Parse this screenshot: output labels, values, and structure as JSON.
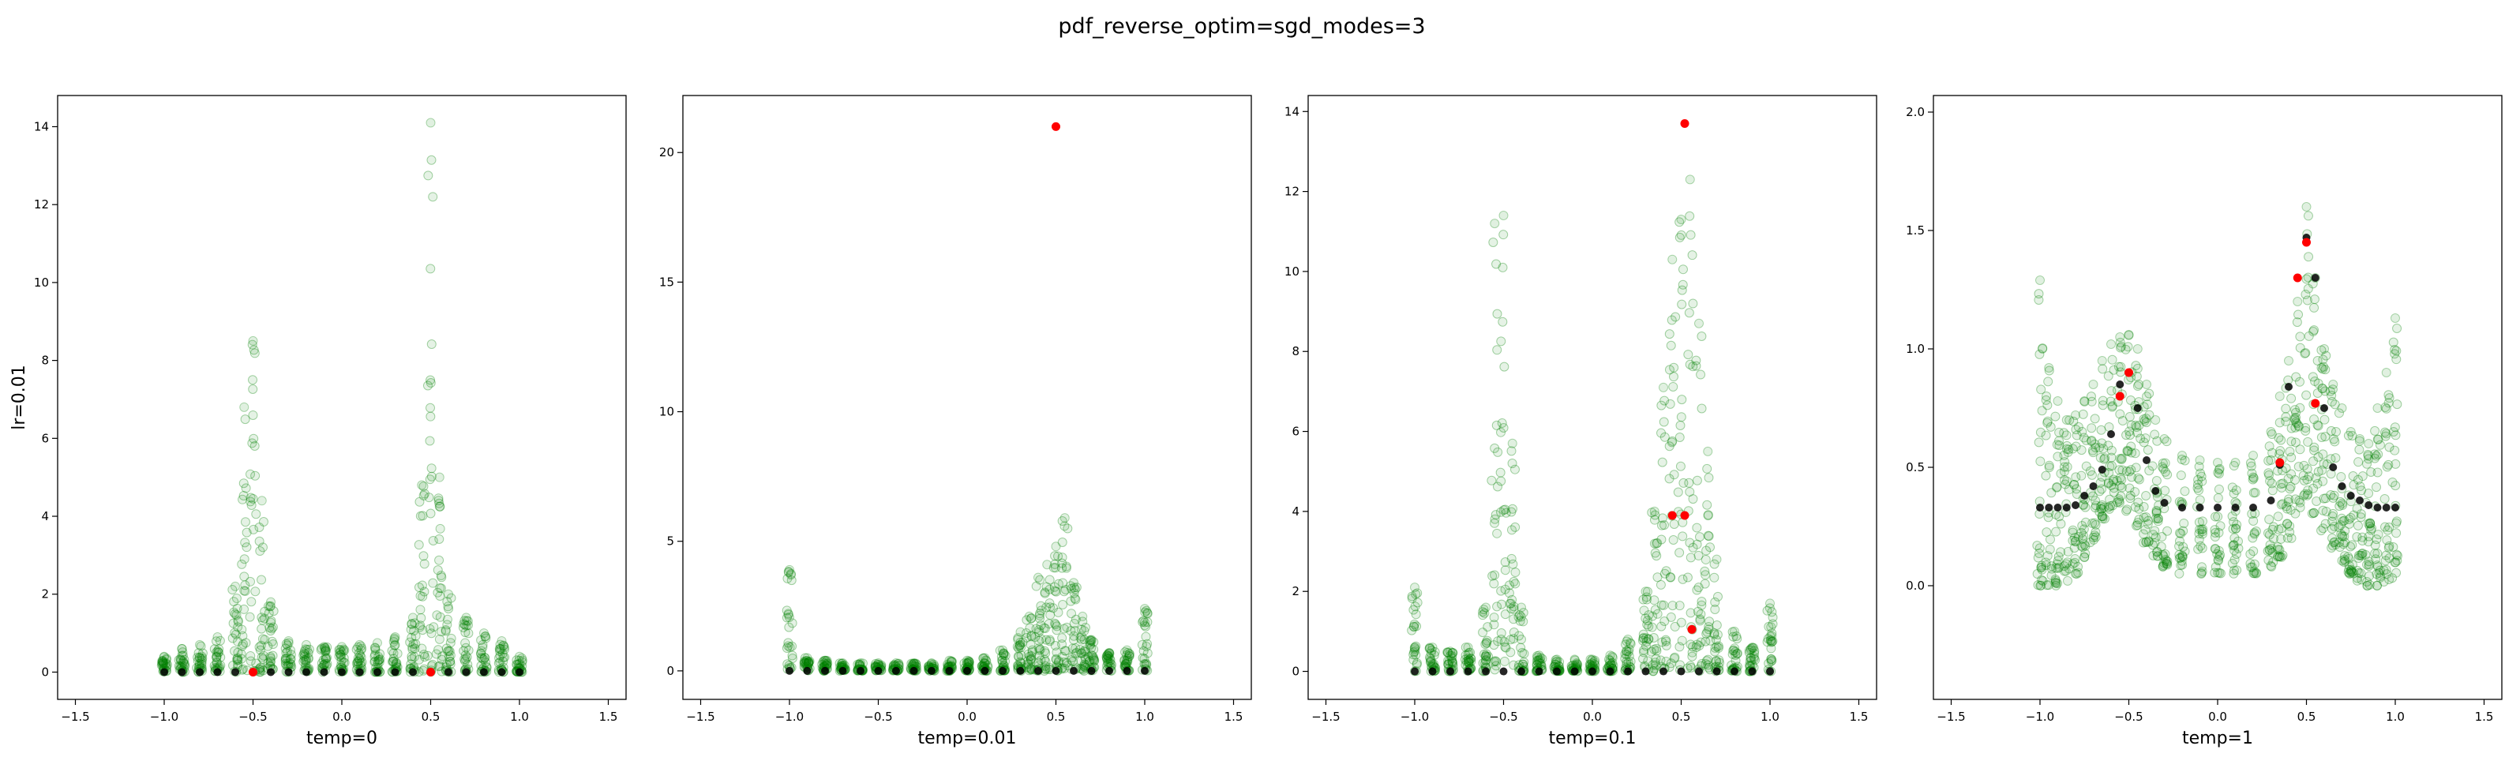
{
  "figure": {
    "title": "pdf_reverse_optim=sgd_modes=3"
  },
  "chart_data": [
    {
      "type": "scatter",
      "title": "",
      "xlabel": "temp=0",
      "ylabel": "lr=0.01",
      "xlim": [
        -1.6,
        1.6
      ],
      "ylim": [
        -0.7,
        14.8
      ],
      "xticks": [
        -1.5,
        -1.0,
        -0.5,
        0.0,
        0.5,
        1.0,
        1.5
      ],
      "xtick_labels": [
        "−1.5",
        "−1.0",
        "−0.5",
        "0.0",
        "0.5",
        "1.0",
        "1.5"
      ],
      "yticks": [
        0,
        2,
        4,
        6,
        8,
        10,
        12,
        14
      ],
      "ytick_labels": [
        "0",
        "2",
        "4",
        "6",
        "8",
        "10",
        "12",
        "14"
      ],
      "grid": false,
      "series": [
        {
          "role": "samples",
          "color": "#008000",
          "alpha": 0.1,
          "x": [
            -1.0,
            -0.9,
            -0.8,
            -0.7,
            -0.6,
            -0.55,
            -0.5,
            -0.45,
            -0.4,
            -0.3,
            -0.2,
            -0.1,
            0.0,
            0.1,
            0.2,
            0.3,
            0.4,
            0.45,
            0.5,
            0.55,
            0.6,
            0.7,
            0.8,
            0.9,
            1.0
          ],
          "y_min": [
            0,
            0,
            0,
            0,
            0,
            0,
            0,
            0,
            0,
            0,
            0,
            0,
            0,
            0,
            0,
            0,
            0,
            0,
            0,
            0,
            0,
            0,
            0,
            0,
            0
          ],
          "y_max": [
            0.4,
            0.6,
            0.7,
            0.9,
            2.2,
            6.8,
            8.5,
            4.4,
            1.8,
            0.8,
            0.7,
            0.65,
            0.65,
            0.7,
            0.75,
            0.9,
            1.4,
            4.8,
            14.1,
            5.0,
            2.0,
            1.4,
            1.0,
            0.8,
            0.4
          ]
        },
        {
          "role": "targets",
          "color": "#000000",
          "x": [
            -1.0,
            -0.9,
            -0.8,
            -0.7,
            -0.6,
            -0.5,
            -0.4,
            -0.3,
            -0.2,
            -0.1,
            0.0,
            0.1,
            0.2,
            0.3,
            0.4,
            0.5,
            0.6,
            0.7,
            0.8,
            0.9,
            1.0
          ],
          "y": [
            0,
            0,
            0,
            0,
            0,
            0,
            0,
            0,
            0,
            0,
            0,
            0,
            0,
            0,
            0,
            0,
            0,
            0,
            0,
            0,
            0
          ]
        },
        {
          "role": "predictions",
          "color": "#ff0000",
          "x": [
            0.5,
            -0.5
          ],
          "y": [
            0.0,
            0.0
          ]
        }
      ]
    },
    {
      "type": "scatter",
      "title": "",
      "xlabel": "temp=0.01",
      "ylabel": "",
      "xlim": [
        -1.6,
        1.6
      ],
      "ylim": [
        -1.1,
        22.2
      ],
      "xticks": [
        -1.5,
        -1.0,
        -0.5,
        0.0,
        0.5,
        1.0,
        1.5
      ],
      "xtick_labels": [
        "−1.5",
        "−1.0",
        "−0.5",
        "0.0",
        "0.5",
        "1.0",
        "1.5"
      ],
      "yticks": [
        0,
        5,
        10,
        15,
        20
      ],
      "ytick_labels": [
        "0",
        "5",
        "10",
        "15",
        "20"
      ],
      "grid": false,
      "series": [
        {
          "role": "samples",
          "color": "#008000",
          "alpha": 0.1,
          "x": [
            -1.0,
            -0.9,
            -0.8,
            -0.7,
            -0.6,
            -0.5,
            -0.4,
            -0.3,
            -0.2,
            -0.1,
            0.0,
            0.1,
            0.2,
            0.3,
            0.35,
            0.4,
            0.45,
            0.5,
            0.55,
            0.6,
            0.65,
            0.7,
            0.8,
            0.9,
            1.0
          ],
          "y_min": [
            0,
            0,
            0,
            0,
            0,
            0,
            0,
            0,
            0,
            0,
            0,
            0,
            0,
            0,
            0,
            0,
            0,
            0,
            0,
            0,
            0,
            0,
            0,
            0,
            0
          ],
          "y_max": [
            3.9,
            0.5,
            0.4,
            0.3,
            0.3,
            0.3,
            0.3,
            0.3,
            0.3,
            0.4,
            0.4,
            0.5,
            0.8,
            1.5,
            2.1,
            3.6,
            4.1,
            4.8,
            5.9,
            3.4,
            2.1,
            1.2,
            0.7,
            0.8,
            2.4
          ]
        },
        {
          "role": "targets",
          "color": "#000000",
          "x": [
            -1.0,
            -0.9,
            -0.8,
            -0.7,
            -0.6,
            -0.5,
            -0.4,
            -0.3,
            -0.2,
            -0.1,
            0.0,
            0.1,
            0.2,
            0.3,
            0.4,
            0.5,
            0.6,
            0.7,
            0.8,
            0.9,
            1.0
          ],
          "y": [
            0,
            0,
            0,
            0,
            0,
            0,
            0,
            0,
            0,
            0,
            0,
            0,
            0,
            0,
            0,
            0,
            0,
            0,
            0,
            0,
            0
          ]
        },
        {
          "role": "predictions",
          "color": "#ff0000",
          "x": [
            0.5
          ],
          "y": [
            21.0
          ]
        }
      ]
    },
    {
      "type": "scatter",
      "title": "",
      "xlabel": "temp=0.1",
      "ylabel": "",
      "xlim": [
        -1.6,
        1.6
      ],
      "ylim": [
        -0.7,
        14.4
      ],
      "xticks": [
        -1.5,
        -1.0,
        -0.5,
        0.0,
        0.5,
        1.0,
        1.5
      ],
      "xtick_labels": [
        "−1.5",
        "−1.0",
        "−0.5",
        "0.0",
        "0.5",
        "1.0",
        "1.5"
      ],
      "yticks": [
        0,
        2,
        4,
        6,
        8,
        10,
        12,
        14
      ],
      "ytick_labels": [
        "0",
        "2",
        "4",
        "6",
        "8",
        "10",
        "12",
        "14"
      ],
      "grid": false,
      "series": [
        {
          "role": "samples",
          "color": "#008000",
          "alpha": 0.1,
          "x": [
            -1.0,
            -0.9,
            -0.8,
            -0.7,
            -0.6,
            -0.55,
            -0.5,
            -0.45,
            -0.4,
            -0.3,
            -0.2,
            -0.1,
            0.0,
            0.1,
            0.2,
            0.3,
            0.35,
            0.4,
            0.45,
            0.5,
            0.55,
            0.6,
            0.65,
            0.7,
            0.8,
            0.9,
            1.0
          ],
          "y_min": [
            0,
            0,
            0,
            0,
            0,
            0,
            0,
            0,
            0,
            0,
            0,
            0,
            0,
            0,
            0,
            0,
            0,
            0,
            0,
            0,
            0,
            0,
            0,
            0,
            0,
            0,
            0
          ],
          "y_max": [
            2.1,
            0.6,
            0.5,
            0.6,
            1.6,
            11.2,
            11.4,
            5.7,
            1.6,
            0.4,
            0.3,
            0.3,
            0.3,
            0.4,
            0.8,
            2.0,
            4.0,
            7.1,
            10.3,
            11.3,
            12.3,
            8.7,
            5.5,
            2.8,
            1.0,
            0.6,
            1.7
          ]
        },
        {
          "role": "targets",
          "color": "#000000",
          "x": [
            -1.0,
            -0.9,
            -0.8,
            -0.7,
            -0.6,
            -0.5,
            -0.4,
            -0.3,
            -0.2,
            -0.1,
            0.0,
            0.1,
            0.2,
            0.3,
            0.4,
            0.5,
            0.6,
            0.7,
            0.8,
            0.9,
            1.0
          ],
          "y": [
            0,
            0,
            0,
            0,
            0,
            0,
            0,
            0,
            0,
            0,
            0,
            0,
            0,
            0,
            0,
            0,
            0,
            0,
            0,
            0,
            0
          ]
        },
        {
          "role": "predictions",
          "color": "#ff0000",
          "x": [
            0.52,
            0.45,
            0.52,
            0.56
          ],
          "y": [
            13.7,
            3.9,
            3.9,
            1.05
          ]
        }
      ]
    },
    {
      "type": "scatter",
      "title": "",
      "xlabel": "temp=1",
      "ylabel": "",
      "xlim": [
        -1.6,
        1.6
      ],
      "ylim": [
        -0.48,
        2.07
      ],
      "xticks": [
        -1.5,
        -1.0,
        -0.5,
        0.0,
        0.5,
        1.0,
        1.5
      ],
      "xtick_labels": [
        "−1.5",
        "−1.0",
        "−0.5",
        "0.0",
        "0.5",
        "1.0",
        "1.5"
      ],
      "yticks": [
        0.0,
        0.5,
        1.0,
        1.5,
        2.0
      ],
      "ytick_labels": [
        "0.0",
        "0.5",
        "1.0",
        "1.5",
        "2.0"
      ],
      "grid": false,
      "series": [
        {
          "role": "samples",
          "color": "#008000",
          "alpha": 0.1,
          "x": [
            -1.0,
            -0.95,
            -0.9,
            -0.85,
            -0.8,
            -0.75,
            -0.7,
            -0.65,
            -0.6,
            -0.55,
            -0.5,
            -0.45,
            -0.4,
            -0.35,
            -0.3,
            -0.2,
            -0.1,
            0.0,
            0.1,
            0.2,
            0.3,
            0.35,
            0.4,
            0.45,
            0.5,
            0.55,
            0.6,
            0.65,
            0.7,
            0.75,
            0.8,
            0.85,
            0.9,
            0.95,
            1.0
          ],
          "y_min": [
            0.0,
            0.0,
            0.0,
            0.02,
            0.05,
            0.12,
            0.18,
            0.28,
            0.32,
            0.35,
            0.3,
            0.25,
            0.18,
            0.12,
            0.08,
            0.05,
            0.05,
            0.05,
            0.05,
            0.05,
            0.08,
            0.12,
            0.2,
            0.3,
            0.38,
            0.3,
            0.22,
            0.16,
            0.1,
            0.05,
            0.02,
            0.0,
            0.0,
            0.0,
            0.0
          ],
          "y_max": [
            1.29,
            0.92,
            0.78,
            0.7,
            0.72,
            0.78,
            0.85,
            0.95,
            1.02,
            1.05,
            1.06,
            1.0,
            0.85,
            0.7,
            0.62,
            0.55,
            0.53,
            0.52,
            0.52,
            0.55,
            0.65,
            0.8,
            0.95,
            1.2,
            1.6,
            1.3,
            1.0,
            0.85,
            0.75,
            0.65,
            0.62,
            0.6,
            0.75,
            0.9,
            1.13
          ]
        },
        {
          "role": "targets",
          "color": "#000000",
          "x": [
            -1.0,
            -0.95,
            -0.9,
            -0.85,
            -0.8,
            -0.75,
            -0.7,
            -0.65,
            -0.6,
            -0.55,
            -0.5,
            -0.45,
            -0.4,
            -0.35,
            -0.3,
            -0.2,
            -0.1,
            0.0,
            0.1,
            0.2,
            0.3,
            0.35,
            0.4,
            0.45,
            0.5,
            0.55,
            0.6,
            0.65,
            0.7,
            0.75,
            0.8,
            0.85,
            0.9,
            0.95,
            1.0
          ],
          "y": [
            0.33,
            0.33,
            0.33,
            0.33,
            0.34,
            0.38,
            0.42,
            0.49,
            0.64,
            0.85,
            0.9,
            0.75,
            0.53,
            0.4,
            0.35,
            0.33,
            0.33,
            0.33,
            0.33,
            0.33,
            0.36,
            0.51,
            0.84,
            1.3,
            1.47,
            1.3,
            0.75,
            0.5,
            0.42,
            0.38,
            0.36,
            0.34,
            0.33,
            0.33,
            0.33
          ]
        },
        {
          "role": "predictions",
          "color": "#ff0000",
          "x": [
            -0.55,
            -0.5,
            0.45,
            0.5,
            0.55,
            0.35
          ],
          "y": [
            0.8,
            0.9,
            1.3,
            1.45,
            0.77,
            0.52
          ]
        }
      ]
    }
  ]
}
